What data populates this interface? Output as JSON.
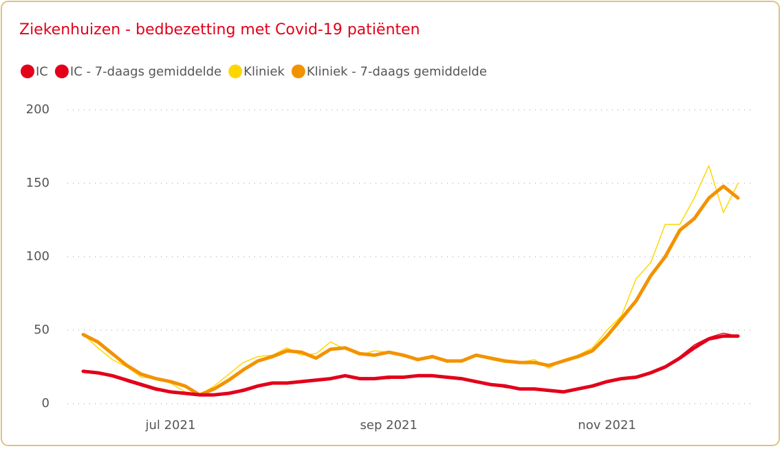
{
  "chart_data": {
    "type": "line",
    "title": "Ziekenhuizen - bedbezetting met Covid-19 patiënten",
    "categories": [
      null,
      null,
      null,
      null,
      null,
      null,
      "jul 2021",
      null,
      null,
      null,
      null,
      null,
      null,
      null,
      null,
      null,
      null,
      null,
      null,
      null,
      null,
      "sep 2021",
      null,
      null,
      null,
      null,
      null,
      null,
      null,
      null,
      null,
      null,
      null,
      null,
      null,
      null,
      "nov 2021",
      null,
      null,
      null,
      null,
      null,
      null,
      null,
      null,
      null
    ],
    "series": [
      {
        "name": "IC",
        "color": "#e2001a",
        "values": [
          22,
          21,
          19,
          15,
          12,
          9,
          8,
          7,
          6,
          6,
          7,
          10,
          12,
          14,
          14,
          15,
          16,
          17,
          19,
          17,
          17,
          17,
          18,
          19,
          19,
          18,
          17,
          15,
          13,
          11,
          10,
          10,
          9,
          8,
          10,
          12,
          15,
          17,
          18,
          21,
          25,
          32,
          40,
          45,
          48,
          46
        ]
      },
      {
        "name": "IC - 7-daags gemiddelde",
        "color": "#e2001a",
        "values": [
          22,
          21,
          19,
          16,
          13,
          10,
          8,
          7,
          6,
          6,
          7,
          9,
          12,
          14,
          14,
          15,
          16,
          17,
          19,
          17,
          17,
          18,
          18,
          19,
          19,
          18,
          17,
          15,
          13,
          12,
          10,
          10,
          9,
          8,
          10,
          12,
          15,
          17,
          18,
          21,
          25,
          31,
          38,
          44,
          46,
          46
        ]
      },
      {
        "name": "Kliniek",
        "color": "#ffd700",
        "values": [
          47,
          38,
          30,
          25,
          18,
          17,
          14,
          8,
          6,
          12,
          20,
          28,
          32,
          33,
          38,
          33,
          34,
          42,
          37,
          33,
          36,
          35,
          32,
          30,
          33,
          28,
          30,
          33,
          30,
          28,
          28,
          30,
          24,
          30,
          33,
          38,
          50,
          60,
          85,
          96,
          122,
          122,
          140,
          162,
          130,
          150
        ]
      },
      {
        "name": "Kliniek - 7-daags gemiddelde",
        "color": "#f39200",
        "values": [
          47,
          42,
          34,
          26,
          20,
          17,
          15,
          12,
          6,
          10,
          16,
          23,
          29,
          32,
          36,
          35,
          31,
          37,
          38,
          34,
          33,
          35,
          33,
          30,
          32,
          29,
          29,
          33,
          31,
          29,
          28,
          28,
          26,
          29,
          32,
          36,
          46,
          58,
          70,
          87,
          100,
          118,
          126,
          140,
          148,
          140
        ]
      }
    ],
    "ylim": [
      0,
      200
    ],
    "yticks": [
      0,
      50,
      100,
      150,
      200
    ],
    "grid": true
  }
}
